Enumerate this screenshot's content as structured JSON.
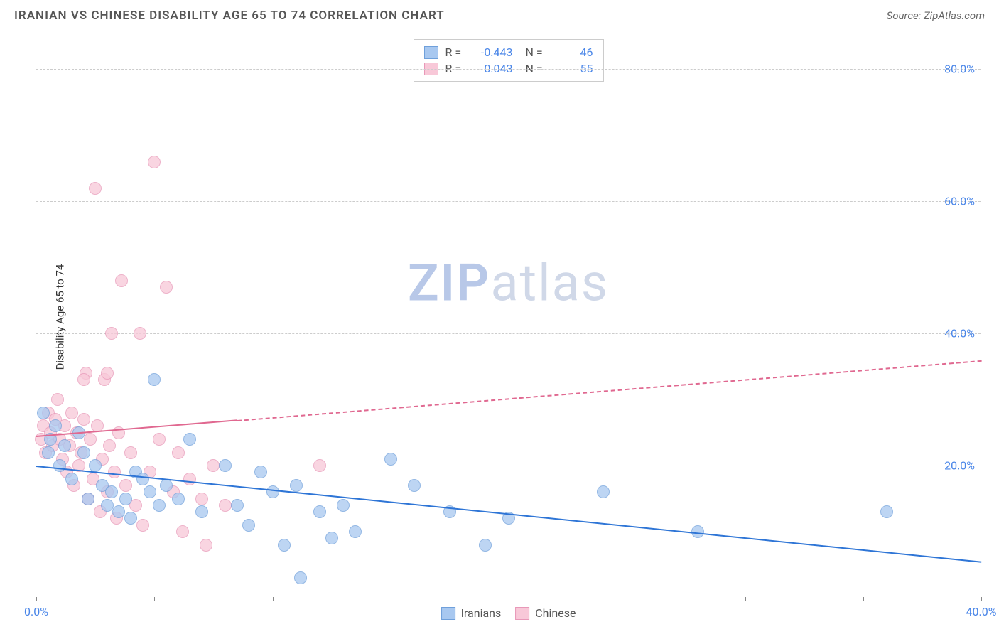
{
  "header": {
    "title": "IRANIAN VS CHINESE DISABILITY AGE 65 TO 74 CORRELATION CHART",
    "source": "Source: ZipAtlas.com"
  },
  "chart": {
    "type": "scatter",
    "ylabel": "Disability Age 65 to 74",
    "xlim": [
      0,
      40
    ],
    "ylim": [
      0,
      85
    ],
    "ytick_values": [
      20,
      40,
      60,
      80
    ],
    "ytick_labels": [
      "20.0%",
      "40.0%",
      "60.0%",
      "80.0%"
    ],
    "xtick_values": [
      0,
      5,
      10,
      15,
      20,
      25,
      30,
      35,
      40
    ],
    "xtick_labels_shown": {
      "0": "0.0%",
      "40": "40.0%"
    },
    "xtick_label_left": "0.0%",
    "xtick_label_right": "40.0%",
    "grid_color": "#cccccc",
    "background_color": "#ffffff",
    "watermark": {
      "zip": "ZIP",
      "atlas": "atlas"
    },
    "series": [
      {
        "name": "Iranians",
        "marker_fill": "#a8c8f0",
        "marker_stroke": "#6fa0db",
        "trend_color": "#2e75d6",
        "trend_solid_xmax": 40,
        "trend": {
          "x1": 0,
          "y1": 20,
          "x2": 40,
          "y2": 5.5
        },
        "r_value": "-0.443",
        "n_value": "46",
        "points": [
          [
            0.3,
            28
          ],
          [
            0.5,
            22
          ],
          [
            0.6,
            24
          ],
          [
            0.8,
            26
          ],
          [
            1.0,
            20
          ],
          [
            1.2,
            23
          ],
          [
            1.5,
            18
          ],
          [
            1.8,
            25
          ],
          [
            2.0,
            22
          ],
          [
            2.2,
            15
          ],
          [
            2.5,
            20
          ],
          [
            2.8,
            17
          ],
          [
            3.0,
            14
          ],
          [
            3.2,
            16
          ],
          [
            3.5,
            13
          ],
          [
            3.8,
            15
          ],
          [
            4.0,
            12
          ],
          [
            4.2,
            19
          ],
          [
            4.5,
            18
          ],
          [
            4.8,
            16
          ],
          [
            5.0,
            33
          ],
          [
            5.2,
            14
          ],
          [
            5.5,
            17
          ],
          [
            6.0,
            15
          ],
          [
            6.5,
            24
          ],
          [
            7.0,
            13
          ],
          [
            8.0,
            20
          ],
          [
            8.5,
            14
          ],
          [
            9.0,
            11
          ],
          [
            9.5,
            19
          ],
          [
            10.0,
            16
          ],
          [
            10.5,
            8
          ],
          [
            11.0,
            17
          ],
          [
            11.2,
            3
          ],
          [
            12.0,
            13
          ],
          [
            12.5,
            9
          ],
          [
            13.0,
            14
          ],
          [
            13.5,
            10
          ],
          [
            15.0,
            21
          ],
          [
            16.0,
            17
          ],
          [
            17.5,
            13
          ],
          [
            19.0,
            8
          ],
          [
            20.0,
            12
          ],
          [
            24.0,
            16
          ],
          [
            28.0,
            10
          ],
          [
            36.0,
            13
          ]
        ]
      },
      {
        "name": "Chinese",
        "marker_fill": "#f8c8d8",
        "marker_stroke": "#e898b8",
        "trend_color": "#e06890",
        "trend_solid_xmax": 8.5,
        "trend": {
          "x1": 0,
          "y1": 24.5,
          "x2": 40,
          "y2": 36
        },
        "r_value": "0.043",
        "n_value": "55",
        "points": [
          [
            0.2,
            24
          ],
          [
            0.3,
            26
          ],
          [
            0.4,
            22
          ],
          [
            0.5,
            28
          ],
          [
            0.6,
            25
          ],
          [
            0.7,
            23
          ],
          [
            0.8,
            27
          ],
          [
            0.9,
            30
          ],
          [
            1.0,
            24
          ],
          [
            1.1,
            21
          ],
          [
            1.2,
            26
          ],
          [
            1.3,
            19
          ],
          [
            1.4,
            23
          ],
          [
            1.5,
            28
          ],
          [
            1.6,
            17
          ],
          [
            1.7,
            25
          ],
          [
            1.8,
            20
          ],
          [
            1.9,
            22
          ],
          [
            2.0,
            27
          ],
          [
            2.1,
            34
          ],
          [
            2.2,
            15
          ],
          [
            2.3,
            24
          ],
          [
            2.4,
            18
          ],
          [
            2.5,
            62
          ],
          [
            2.6,
            26
          ],
          [
            2.7,
            13
          ],
          [
            2.8,
            21
          ],
          [
            2.9,
            33
          ],
          [
            3.0,
            16
          ],
          [
            3.1,
            23
          ],
          [
            3.2,
            40
          ],
          [
            3.3,
            19
          ],
          [
            3.4,
            12
          ],
          [
            3.5,
            25
          ],
          [
            3.6,
            48
          ],
          [
            3.8,
            17
          ],
          [
            4.0,
            22
          ],
          [
            4.2,
            14
          ],
          [
            4.4,
            40
          ],
          [
            4.5,
            11
          ],
          [
            4.8,
            19
          ],
          [
            5.0,
            66
          ],
          [
            5.2,
            24
          ],
          [
            5.5,
            47
          ],
          [
            5.8,
            16
          ],
          [
            6.0,
            22
          ],
          [
            6.2,
            10
          ],
          [
            6.5,
            18
          ],
          [
            7.0,
            15
          ],
          [
            7.2,
            8
          ],
          [
            7.5,
            20
          ],
          [
            8.0,
            14
          ],
          [
            12.0,
            20
          ],
          [
            3.0,
            34
          ],
          [
            2.0,
            33
          ]
        ]
      }
    ],
    "legend_top": {
      "r_label": "R =",
      "n_label": "N ="
    },
    "legend_bottom": [
      {
        "label": "Iranians",
        "fill": "#a8c8f0",
        "stroke": "#6fa0db"
      },
      {
        "label": "Chinese",
        "fill": "#f8c8d8",
        "stroke": "#e898b8"
      }
    ]
  }
}
